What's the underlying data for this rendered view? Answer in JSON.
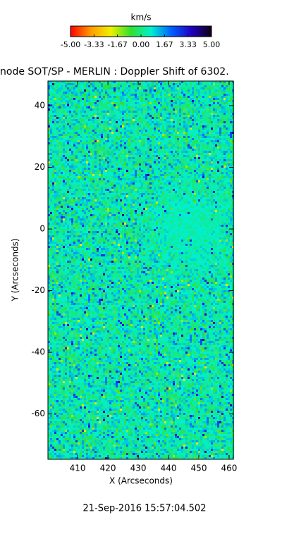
{
  "chart_data": {
    "type": "image",
    "title": "node SOT/SP - MERLIN : Doppler Shift of 6302.",
    "x_label": "X (Arcseconds)",
    "y_label": "Y (Arcseconds)",
    "xlim": [
      400.2,
      461.4
    ],
    "ylim": [
      -74.7,
      48
    ],
    "xticks": [
      410,
      420,
      430,
      440,
      450,
      460
    ],
    "yticks": [
      -60,
      -40,
      -20,
      0,
      20,
      40
    ],
    "colorbar": {
      "label": "km/s",
      "lim": [
        -5,
        5
      ],
      "ticks": [
        {
          "value": -5,
          "label": "-5.00"
        },
        {
          "value": -3.33,
          "label": "-3.33"
        },
        {
          "value": -1.67,
          "label": "-1.67"
        },
        {
          "value": 0,
          "label": "0.00"
        },
        {
          "value": 1.67,
          "label": "1.67"
        },
        {
          "value": 3.33,
          "label": "3.33"
        },
        {
          "value": 5,
          "label": "5.00"
        }
      ],
      "colormap": [
        "#ff0000",
        "#ff9a00",
        "#f0f000",
        "#30e030",
        "#00f0d0",
        "#0060ff",
        "#2000c0",
        "#100010"
      ]
    },
    "date": "21-Sep-2016 15:57:04.502"
  }
}
